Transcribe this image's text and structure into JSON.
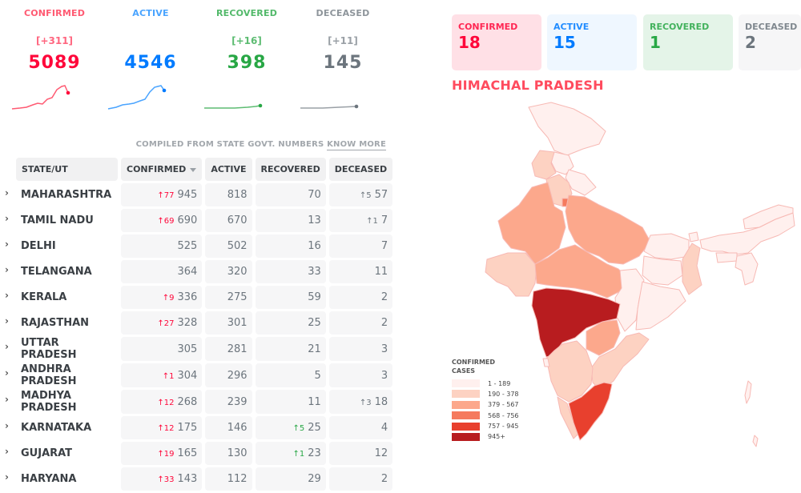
{
  "levels": [
    {
      "label": "CONFIRMED",
      "delta": "[+311]",
      "value": "5089",
      "color": "#ff073a"
    },
    {
      "label": "ACTIVE",
      "delta": "",
      "value": "4546",
      "color": "#007bff"
    },
    {
      "label": "RECOVERED",
      "delta": "[+16]",
      "value": "398",
      "color": "#28a745"
    },
    {
      "label": "DECEASED",
      "delta": "[+11]",
      "value": "145",
      "color": "#6c757d"
    }
  ],
  "table": {
    "compiled_text": "COMPILED FROM STATE GOVT. NUMBERS",
    "know_more": "KNOW MORE",
    "headers": {
      "state": "STATE/UT",
      "confirmed": "CONFIRMED",
      "active": "ACTIVE",
      "recovered": "RECOVERED",
      "deceased": "DECEASED"
    },
    "rows": [
      {
        "state": "MAHARASHTRA",
        "confirmed_delta": "↑77",
        "confirmed": "945",
        "active": "818",
        "recovered_delta": "",
        "recovered": "70",
        "deceased_delta": "↑5",
        "deceased": "57"
      },
      {
        "state": "TAMIL NADU",
        "confirmed_delta": "↑69",
        "confirmed": "690",
        "active": "670",
        "recovered_delta": "",
        "recovered": "13",
        "deceased_delta": "↑1",
        "deceased": "7"
      },
      {
        "state": "DELHI",
        "confirmed_delta": "",
        "confirmed": "525",
        "active": "502",
        "recovered_delta": "",
        "recovered": "16",
        "deceased_delta": "",
        "deceased": "7"
      },
      {
        "state": "TELANGANA",
        "confirmed_delta": "",
        "confirmed": "364",
        "active": "320",
        "recovered_delta": "",
        "recovered": "33",
        "deceased_delta": "",
        "deceased": "11"
      },
      {
        "state": "KERALA",
        "confirmed_delta": "↑9",
        "confirmed": "336",
        "active": "275",
        "recovered_delta": "",
        "recovered": "59",
        "deceased_delta": "",
        "deceased": "2"
      },
      {
        "state": "RAJASTHAN",
        "confirmed_delta": "↑27",
        "confirmed": "328",
        "active": "301",
        "recovered_delta": "",
        "recovered": "25",
        "deceased_delta": "",
        "deceased": "2"
      },
      {
        "state": "UTTAR PRADESH",
        "confirmed_delta": "",
        "confirmed": "305",
        "active": "281",
        "recovered_delta": "",
        "recovered": "21",
        "deceased_delta": "",
        "deceased": "3"
      },
      {
        "state": "ANDHRA PRADESH",
        "confirmed_delta": "↑1",
        "confirmed": "304",
        "active": "296",
        "recovered_delta": "",
        "recovered": "5",
        "deceased_delta": "",
        "deceased": "3"
      },
      {
        "state": "MADHYA PRADESH",
        "confirmed_delta": "↑12",
        "confirmed": "268",
        "active": "239",
        "recovered_delta": "",
        "recovered": "11",
        "deceased_delta": "↑3",
        "deceased": "18"
      },
      {
        "state": "KARNATAKA",
        "confirmed_delta": "↑12",
        "confirmed": "175",
        "active": "146",
        "recovered_delta": "↑5",
        "recovered": "25",
        "deceased_delta": "",
        "deceased": "4"
      },
      {
        "state": "GUJARAT",
        "confirmed_delta": "↑19",
        "confirmed": "165",
        "active": "130",
        "recovered_delta": "↑1",
        "recovered": "23",
        "deceased_delta": "",
        "deceased": "12"
      },
      {
        "state": "HARYANA",
        "confirmed_delta": "↑33",
        "confirmed": "143",
        "active": "112",
        "recovered_delta": "",
        "recovered": "29",
        "deceased_delta": "",
        "deceased": "2"
      }
    ]
  },
  "map_panel": {
    "stats": [
      {
        "label": "CONFIRMED",
        "value": "18",
        "color": "#ff073a",
        "bg": "#ffe0e6"
      },
      {
        "label": "ACTIVE",
        "value": "15",
        "color": "#007bff",
        "bg": "#eff7ff"
      },
      {
        "label": "RECOVERED",
        "value": "1",
        "color": "#28a745",
        "bg": "#e4f4e8"
      },
      {
        "label": "DECEASED",
        "value": "2",
        "color": "#6c757d",
        "bg": "#f6f6f7"
      }
    ],
    "region_title": "HIMACHAL PRADESH",
    "legend_title_1": "CONFIRMED",
    "legend_title_2": "CASES",
    "legend": [
      {
        "range": "1 - 189",
        "color": "#fff0ee"
      },
      {
        "range": "190 - 378",
        "color": "#fdd2c2"
      },
      {
        "range": "379 - 567",
        "color": "#fca88c"
      },
      {
        "range": "568 - 756",
        "color": "#f57a5e"
      },
      {
        "range": "757 - 945",
        "color": "#e8402e"
      },
      {
        "range": "945+",
        "color": "#b81c1f"
      }
    ],
    "icons": [
      "chevron-right-icon",
      "sort-down-icon"
    ]
  }
}
